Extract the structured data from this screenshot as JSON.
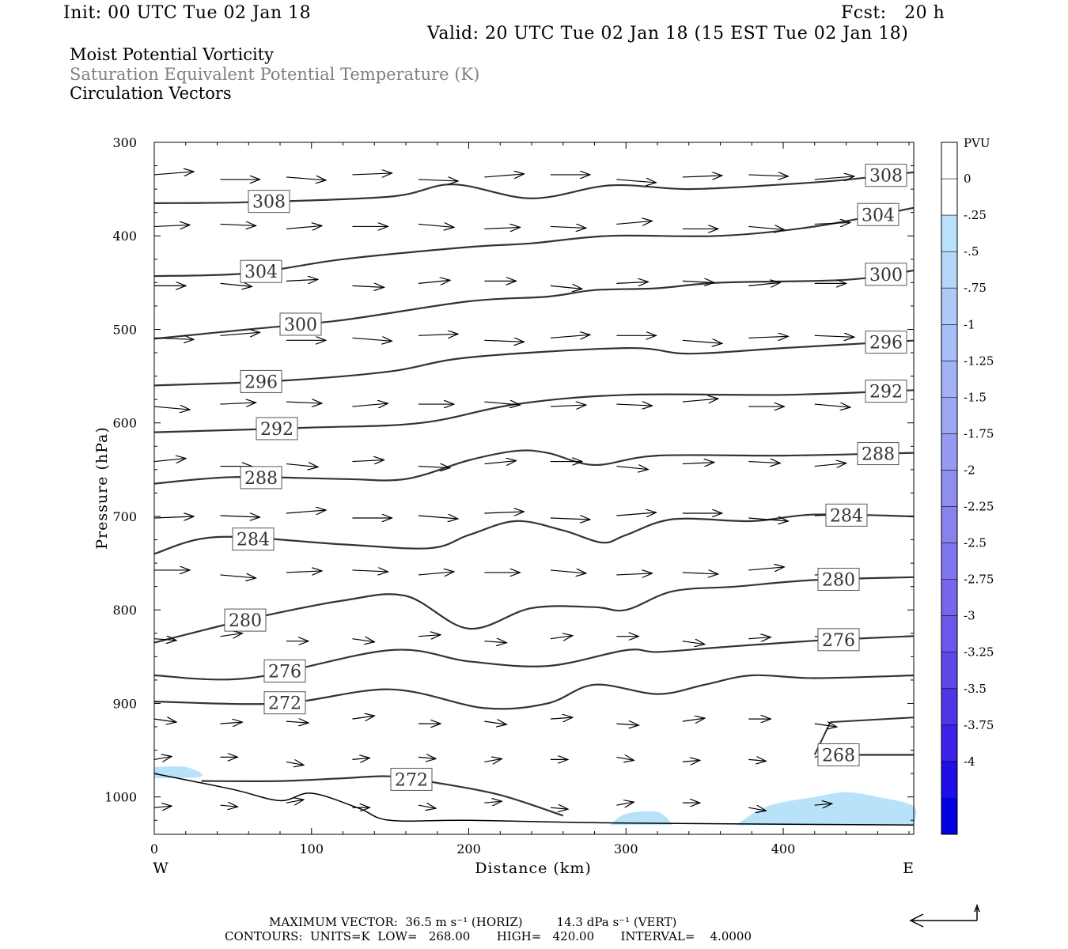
{
  "header": {
    "init": "Init: 00 UTC Tue 02 Jan 18",
    "fcst": "Fcst:   20 h",
    "valid": "Valid: 20 UTC Tue 02 Jan 18 (15 EST Tue 02 Jan 18)"
  },
  "titles": {
    "line1": "Moist Potential Vorticity",
    "line2": "Saturation Equivalent Potential Temperature (K)",
    "line3": "Circulation Vectors"
  },
  "footer": {
    "max_vector": "MAXIMUM VECTOR:  36.5 m s⁻¹ (HORIZ)         14.3 dPa s⁻¹ (VERT)",
    "contours": "CONTOURS:  UNITS=K  LOW=   268.00       HIGH=   420.00       INTERVAL=    4.0000"
  },
  "colors": {
    "contour": "#333333",
    "arrow": "#000000",
    "pv_fill": "#b8e2fa"
  },
  "chart_data": {
    "type": "contour",
    "xlabel": "Distance (km)",
    "ylabel": "Pressure (hPa)",
    "xlim": [
      0,
      483
    ],
    "ylim": [
      300,
      1040
    ],
    "x_ticks": [
      0,
      100,
      200,
      300,
      400
    ],
    "y_ticks": [
      300,
      400,
      500,
      600,
      700,
      800,
      900,
      1000
    ],
    "x_end_labels": {
      "left": "W",
      "right": "E"
    },
    "contours": [
      {
        "label": "308",
        "pts": [
          [
            0,
            365
          ],
          [
            60,
            364
          ],
          [
            150,
            358
          ],
          [
            190,
            345
          ],
          [
            240,
            360
          ],
          [
            290,
            346
          ],
          [
            340,
            350
          ],
          [
            400,
            345
          ],
          [
            440,
            340
          ],
          [
            483,
            332
          ]
        ]
      },
      {
        "label": "304",
        "pts": [
          [
            0,
            443
          ],
          [
            60,
            440
          ],
          [
            120,
            425
          ],
          [
            200,
            412
          ],
          [
            240,
            408
          ],
          [
            290,
            400
          ],
          [
            360,
            400
          ],
          [
            420,
            390
          ],
          [
            483,
            370
          ]
        ]
      },
      {
        "label": "300",
        "pts": [
          [
            0,
            510
          ],
          [
            60,
            500
          ],
          [
            120,
            490
          ],
          [
            200,
            470
          ],
          [
            250,
            465
          ],
          [
            280,
            458
          ],
          [
            320,
            456
          ],
          [
            360,
            450
          ],
          [
            440,
            447
          ],
          [
            483,
            437
          ]
        ]
      },
      {
        "label": "296",
        "pts": [
          [
            0,
            560
          ],
          [
            80,
            555
          ],
          [
            150,
            545
          ],
          [
            200,
            530
          ],
          [
            300,
            520
          ],
          [
            340,
            526
          ],
          [
            400,
            520
          ],
          [
            483,
            512
          ]
        ]
      },
      {
        "label": "292",
        "pts": [
          [
            0,
            610
          ],
          [
            100,
            605
          ],
          [
            170,
            600
          ],
          [
            230,
            580
          ],
          [
            300,
            570
          ],
          [
            400,
            570
          ],
          [
            483,
            565
          ]
        ]
      },
      {
        "label": "288",
        "pts": [
          [
            0,
            665
          ],
          [
            50,
            658
          ],
          [
            120,
            660
          ],
          [
            160,
            660
          ],
          [
            200,
            640
          ],
          [
            230,
            630
          ],
          [
            250,
            632
          ],
          [
            280,
            645
          ],
          [
            320,
            635
          ],
          [
            400,
            635
          ],
          [
            483,
            632
          ]
        ]
      },
      {
        "label": "284",
        "pts": [
          [
            0,
            740
          ],
          [
            40,
            722
          ],
          [
            120,
            730
          ],
          [
            175,
            734
          ],
          [
            200,
            720
          ],
          [
            230,
            705
          ],
          [
            260,
            715
          ],
          [
            285,
            728
          ],
          [
            300,
            720
          ],
          [
            330,
            703
          ],
          [
            380,
            705
          ],
          [
            420,
            698
          ],
          [
            483,
            700
          ]
        ]
      },
      {
        "label": "280",
        "pts": [
          [
            0,
            835
          ],
          [
            60,
            810
          ],
          [
            120,
            790
          ],
          [
            160,
            785
          ],
          [
            200,
            820
          ],
          [
            240,
            798
          ],
          [
            280,
            797
          ],
          [
            300,
            800
          ],
          [
            330,
            780
          ],
          [
            370,
            775
          ],
          [
            420,
            768
          ],
          [
            483,
            765
          ]
        ]
      },
      {
        "label": "276",
        "pts": [
          [
            0,
            870
          ],
          [
            60,
            873
          ],
          [
            150,
            843
          ],
          [
            200,
            855
          ],
          [
            250,
            860
          ],
          [
            300,
            843
          ],
          [
            320,
            845
          ],
          [
            360,
            840
          ],
          [
            420,
            833
          ],
          [
            483,
            828
          ]
        ]
      },
      {
        "label": "272",
        "pts": [
          [
            0,
            898
          ],
          [
            80,
            900
          ],
          [
            150,
            885
          ],
          [
            210,
            905
          ],
          [
            250,
            900
          ],
          [
            280,
            880
          ],
          [
            320,
            890
          ],
          [
            350,
            880
          ],
          [
            380,
            870
          ],
          [
            420,
            873
          ],
          [
            483,
            870
          ]
        ]
      },
      {
        "label": "268",
        "pts": [
          [
            430,
            955
          ],
          [
            483,
            955
          ]
        ]
      },
      {
        "label": "272",
        "pts": [
          [
            30,
            983
          ],
          [
            80,
            983
          ],
          [
            120,
            980
          ],
          [
            150,
            978
          ],
          [
            180,
            985
          ],
          [
            220,
            998
          ],
          [
            260,
            1020
          ]
        ]
      }
    ],
    "surface_line": [
      [
        0,
        975
      ],
      [
        50,
        992
      ],
      [
        80,
        1004
      ],
      [
        100,
        996
      ],
      [
        130,
        1012
      ],
      [
        150,
        1025
      ],
      [
        200,
        1025
      ],
      [
        300,
        1028
      ],
      [
        483,
        1030
      ]
    ],
    "pv_fill_regions": [
      {
        "pts": [
          [
            0,
            968
          ],
          [
            20,
            968
          ],
          [
            30,
            978
          ],
          [
            0,
            980
          ]
        ]
      },
      {
        "pts": [
          [
            290,
            1030
          ],
          [
            300,
            1018
          ],
          [
            320,
            1016
          ],
          [
            330,
            1030
          ]
        ]
      },
      {
        "pts": [
          [
            370,
            1030
          ],
          [
            390,
            1010
          ],
          [
            420,
            1000
          ],
          [
            440,
            995
          ],
          [
            460,
            1000
          ],
          [
            483,
            1010
          ],
          [
            483,
            1030
          ]
        ]
      }
    ],
    "circulation_vectors": {
      "rows": [
        338,
        390,
        450,
        510,
        580,
        643,
        700,
        760,
        830,
        920,
        960,
        1008
      ],
      "spacing_km": 42
    },
    "colorbar": {
      "title": "PVU",
      "labels": [
        "0",
        "-.25",
        "-.5",
        "-.75",
        "-1",
        "-1.25",
        "-1.5",
        "-1.75",
        "-2",
        "-2.25",
        "-2.5",
        "-2.75",
        "-3",
        "-3.25",
        "-3.5",
        "-3.75",
        "-4"
      ],
      "colors": [
        "#ffffff",
        "#ffffff",
        "#b9e3fb",
        "#b5d6f9",
        "#aecaf7",
        "#a8bef6",
        "#a2b2f4",
        "#9ca6f2",
        "#969af1",
        "#8f8ef0",
        "#8882ee",
        "#7f75ed",
        "#7567eb",
        "#6a58ea",
        "#5d48e9",
        "#4d36e8",
        "#3a22e7",
        "#1f0ee5",
        "#0000e0"
      ]
    }
  }
}
